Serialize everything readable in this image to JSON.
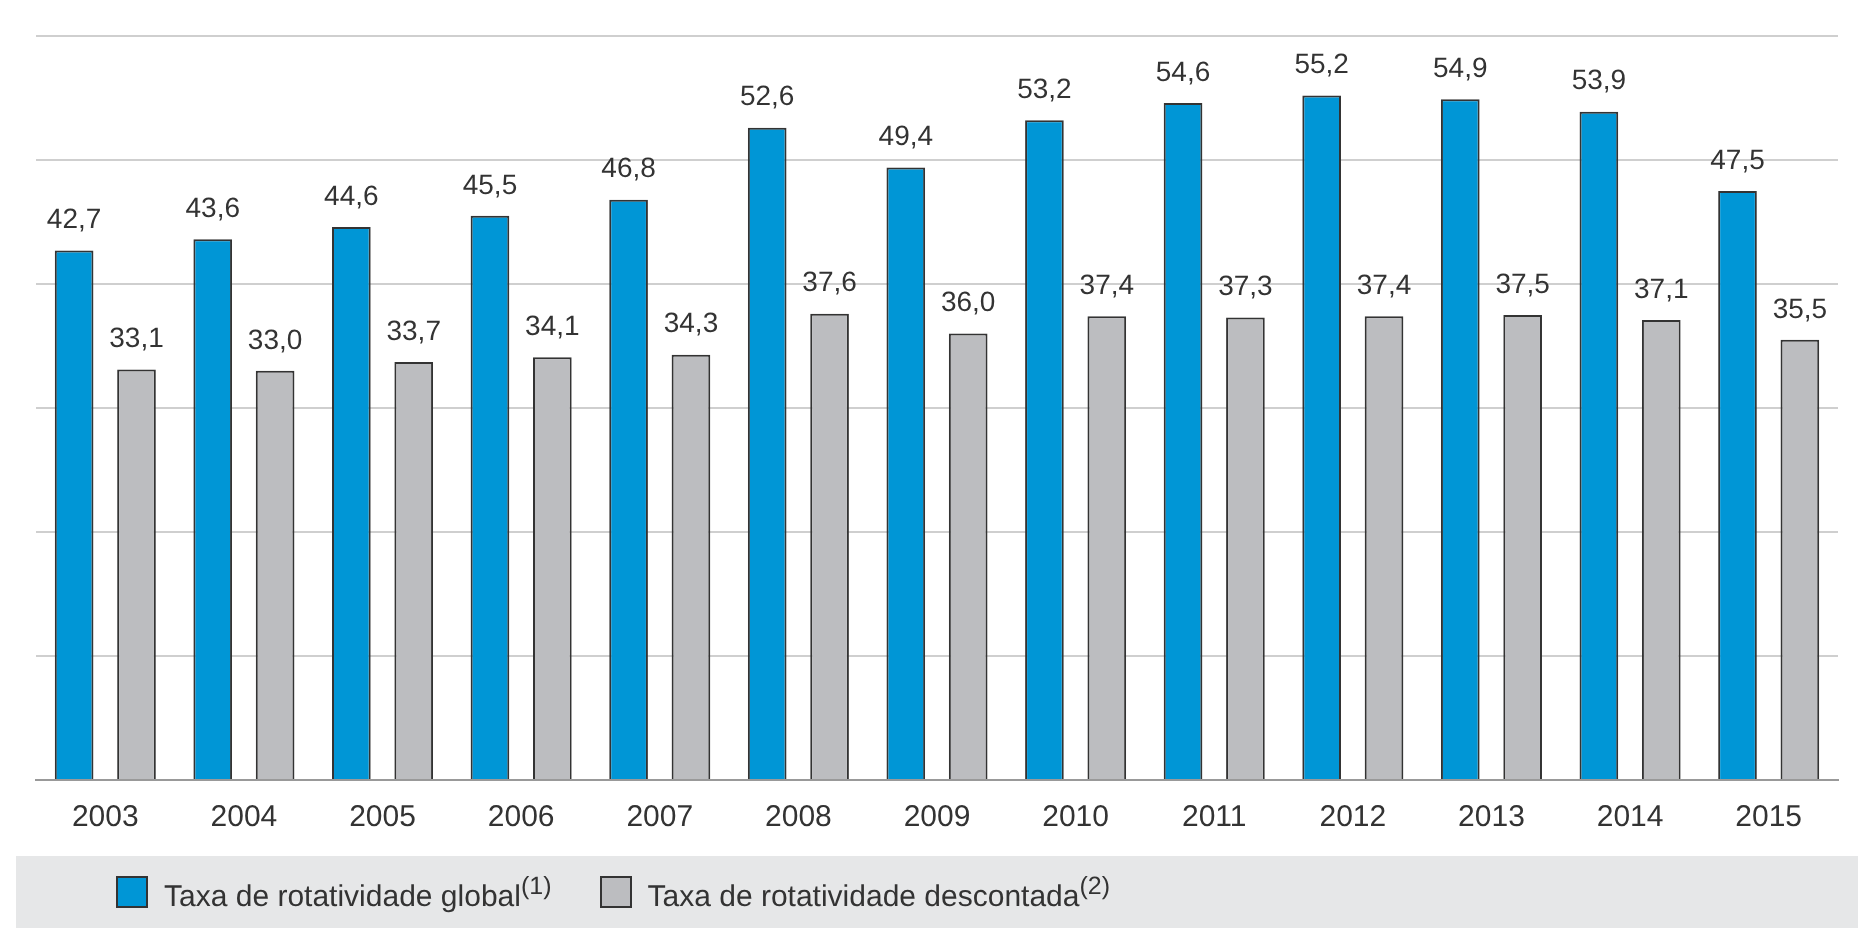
{
  "chart_data": {
    "type": "bar",
    "categories": [
      "2003",
      "2004",
      "2005",
      "2006",
      "2007",
      "2008",
      "2009",
      "2010",
      "2011",
      "2012",
      "2013",
      "2014",
      "2015"
    ],
    "series": [
      {
        "name": "Taxa de rotatividade global$^{(1)}$",
        "color": "#0096d6",
        "values": [
          42.7,
          43.6,
          44.6,
          45.5,
          46.8,
          52.6,
          49.4,
          53.2,
          54.6,
          55.2,
          54.9,
          53.9,
          47.5
        ],
        "value_labels": [
          "42,7",
          "43,6",
          "44,6",
          "45,5",
          "46,8",
          "52,6",
          "49,4",
          "53,2",
          "54,6",
          "55,2",
          "54,9",
          "53,9",
          "47,5"
        ]
      },
      {
        "name": "Taxa de rotatividade descontada$^{(2)}$",
        "color": "#bcbdc0",
        "values": [
          33.1,
          33.0,
          33.7,
          34.1,
          34.3,
          37.6,
          36.0,
          37.4,
          37.3,
          37.4,
          37.5,
          37.1,
          35.5
        ],
        "value_labels": [
          "33,1",
          "33,0",
          "33,7",
          "34,1",
          "34,3",
          "37,6",
          "36,0",
          "37,4",
          "37,3",
          "37,4",
          "37,5",
          "37,1",
          "35,5"
        ]
      }
    ],
    "tick_labels": "x",
    "grid": "y",
    "legend": "bottom"
  }
}
